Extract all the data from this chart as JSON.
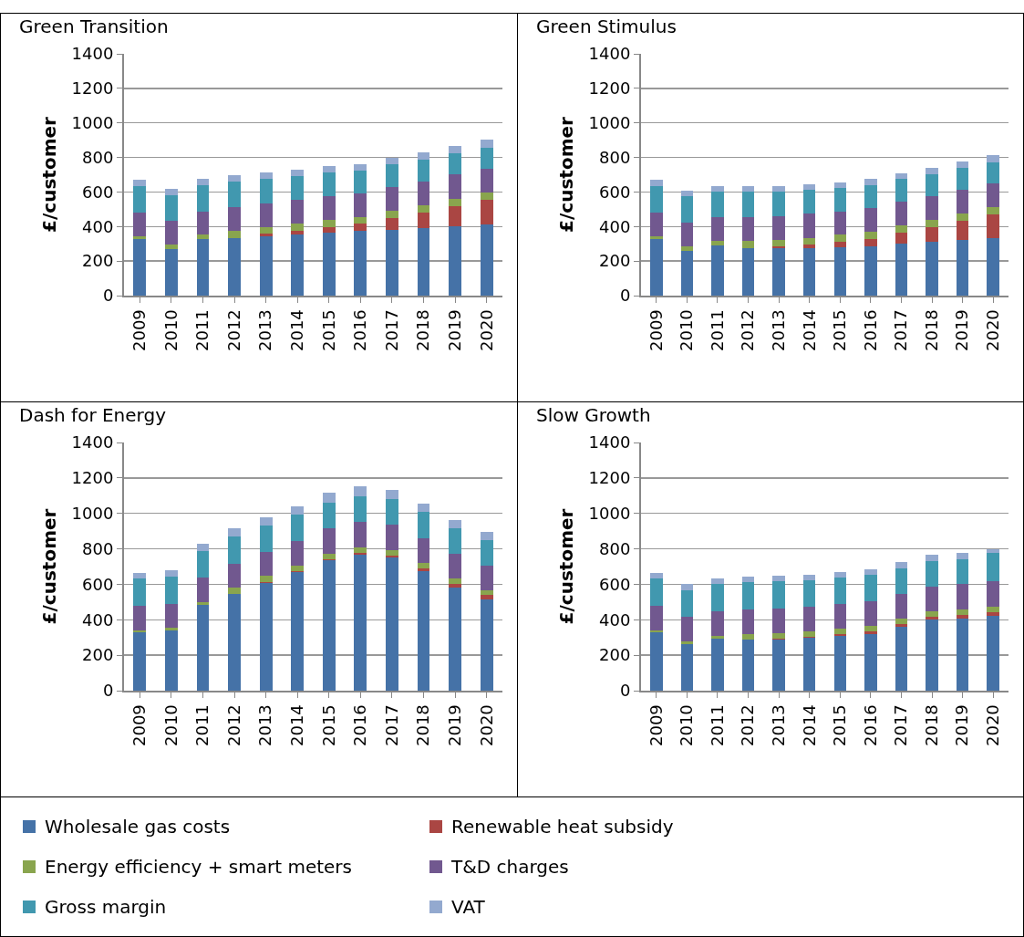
{
  "chart_data": [
    {
      "type": "bar",
      "title": "Green Transition",
      "ylabel": "£/customer",
      "stacked": true,
      "categories": [
        "2009",
        "2010",
        "2011",
        "2012",
        "2013",
        "2014",
        "2015",
        "2016",
        "2017",
        "2018",
        "2019",
        "2020"
      ],
      "ylim": [
        0,
        1400
      ],
      "yticks": [
        0,
        200,
        400,
        600,
        800,
        1000,
        1200,
        1400
      ],
      "grid": "y",
      "legend": "bottom",
      "series": [
        {
          "name": "Wholesale gas costs",
          "color": "#4572a7",
          "values": [
            327,
            269,
            326,
            335,
            345,
            356,
            365,
            373,
            382,
            393,
            404,
            412
          ]
        },
        {
          "name": "Renewable heat subsidy",
          "color": "#aa4643",
          "values": [
            0,
            0,
            0,
            0,
            13,
            19,
            31,
            43,
            69,
            88,
            115,
            144
          ]
        },
        {
          "name": "Energy efficiency + smart meters",
          "color": "#89a54e",
          "values": [
            18,
            25,
            26,
            40,
            37,
            41,
            41,
            41,
            41,
            41,
            40,
            40
          ]
        },
        {
          "name": "T&D charges",
          "color": "#71588f",
          "values": [
            136,
            140,
            136,
            138,
            139,
            140,
            138,
            136,
            138,
            140,
            142,
            140
          ]
        },
        {
          "name": "Gross margin",
          "color": "#4198af",
          "values": [
            153,
            147,
            153,
            149,
            144,
            138,
            138,
            133,
            133,
            127,
            125,
            122
          ]
        },
        {
          "name": "VAT",
          "color": "#93a9cf",
          "values": [
            35,
            35,
            33,
            34,
            35,
            35,
            36,
            37,
            37,
            39,
            39,
            43
          ]
        }
      ]
    },
    {
      "type": "bar",
      "title": "Green Stimulus",
      "ylabel": "£/customer",
      "stacked": true,
      "categories": [
        "2009",
        "2010",
        "2011",
        "2012",
        "2013",
        "2014",
        "2015",
        "2016",
        "2017",
        "2018",
        "2019",
        "2020"
      ],
      "ylim": [
        0,
        1400
      ],
      "yticks": [
        0,
        200,
        400,
        600,
        800,
        1000,
        1200,
        1400
      ],
      "grid": "y",
      "series": [
        {
          "color": "#4572a7",
          "values": [
            327,
            258,
            290,
            274,
            274,
            276,
            280,
            287,
            299,
            310,
            320,
            331
          ]
        },
        {
          "color": "#aa4643",
          "values": [
            0,
            0,
            0,
            0,
            11,
            20,
            30,
            40,
            66,
            88,
            114,
            138
          ]
        },
        {
          "color": "#89a54e",
          "values": [
            18,
            27,
            25,
            41,
            39,
            39,
            42,
            41,
            40,
            39,
            40,
            41
          ]
        },
        {
          "color": "#71588f",
          "values": [
            136,
            138,
            140,
            140,
            138,
            141,
            136,
            140,
            140,
            140,
            140,
            138
          ]
        },
        {
          "color": "#4198af",
          "values": [
            153,
            152,
            149,
            149,
            142,
            138,
            137,
            133,
            129,
            128,
            128,
            125
          ]
        },
        {
          "color": "#93a9cf",
          "values": [
            35,
            30,
            31,
            28,
            31,
            32,
            32,
            33,
            36,
            35,
            35,
            38
          ]
        }
      ]
    },
    {
      "type": "bar",
      "title": "Dash for Energy",
      "ylabel": "£/customer",
      "stacked": true,
      "categories": [
        "2009",
        "2010",
        "2011",
        "2012",
        "2013",
        "2014",
        "2015",
        "2016",
        "2017",
        "2018",
        "2019",
        "2020"
      ],
      "ylim": [
        0,
        1400
      ],
      "yticks": [
        0,
        200,
        400,
        600,
        800,
        1000,
        1200,
        1400
      ],
      "grid": "y",
      "series": [
        {
          "color": "#4572a7",
          "values": [
            332,
            339,
            485,
            547,
            607,
            667,
            734,
            765,
            750,
            675,
            580,
            517
          ]
        },
        {
          "color": "#aa4643",
          "values": [
            0,
            0,
            0,
            0,
            5,
            7,
            7,
            11,
            10,
            15,
            21,
            21
          ]
        },
        {
          "color": "#89a54e",
          "values": [
            10,
            14,
            14,
            33,
            34,
            33,
            33,
            34,
            35,
            33,
            30,
            30
          ]
        },
        {
          "color": "#71588f",
          "values": [
            138,
            137,
            139,
            138,
            135,
            138,
            140,
            141,
            140,
            138,
            140,
            139
          ]
        },
        {
          "color": "#4198af",
          "values": [
            151,
            154,
            150,
            151,
            150,
            146,
            146,
            146,
            144,
            146,
            143,
            143
          ]
        },
        {
          "color": "#93a9cf",
          "values": [
            32,
            33,
            41,
            45,
            46,
            51,
            55,
            55,
            55,
            49,
            47,
            44
          ]
        }
      ]
    },
    {
      "type": "bar",
      "title": "Slow Growth",
      "ylabel": "£/customer",
      "stacked": true,
      "categories": [
        "2009",
        "2010",
        "2011",
        "2012",
        "2013",
        "2014",
        "2015",
        "2016",
        "2017",
        "2018",
        "2019",
        "2020"
      ],
      "ylim": [
        0,
        1400
      ],
      "yticks": [
        0,
        200,
        400,
        600,
        800,
        1000,
        1200,
        1400
      ],
      "grid": "y",
      "series": [
        {
          "color": "#4572a7",
          "values": [
            332,
            263,
            295,
            287,
            287,
            296,
            309,
            321,
            362,
            400,
            407,
            423
          ]
        },
        {
          "color": "#aa4643",
          "values": [
            0,
            0,
            0,
            0,
            6,
            9,
            10,
            12,
            14,
            16,
            20,
            20
          ]
        },
        {
          "color": "#89a54e",
          "values": [
            10,
            16,
            15,
            34,
            32,
            32,
            32,
            32,
            31,
            30,
            32,
            33
          ]
        },
        {
          "color": "#71588f",
          "values": [
            138,
            137,
            138,
            139,
            139,
            137,
            138,
            141,
            140,
            140,
            141,
            141
          ]
        },
        {
          "color": "#4198af",
          "values": [
            151,
            152,
            152,
            152,
            152,
            149,
            148,
            147,
            144,
            146,
            141,
            159
          ]
        },
        {
          "color": "#93a9cf",
          "values": [
            32,
            32,
            31,
            30,
            31,
            33,
            31,
            31,
            36,
            35,
            37,
            21
          ]
        }
      ]
    }
  ]
}
